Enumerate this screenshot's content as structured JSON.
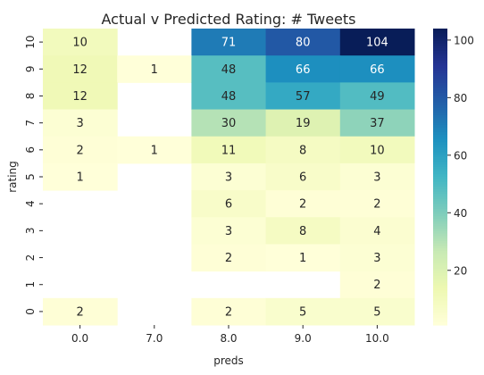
{
  "chart_data": {
    "type": "heatmap",
    "title": "Actual v Predicted Rating: # Tweets",
    "xlabel": "preds",
    "ylabel": "rating",
    "x_categories": [
      "0.0",
      "7.0",
      "8.0",
      "9.0",
      "10.0"
    ],
    "y_categories": [
      "10",
      "9",
      "8",
      "7",
      "6",
      "5",
      "4",
      "3",
      "2",
      "1",
      "0"
    ],
    "values": [
      [
        10,
        null,
        71,
        80,
        104
      ],
      [
        12,
        1,
        48,
        66,
        66
      ],
      [
        12,
        null,
        48,
        57,
        49
      ],
      [
        3,
        null,
        30,
        19,
        37
      ],
      [
        2,
        1,
        11,
        8,
        10
      ],
      [
        1,
        null,
        3,
        6,
        3
      ],
      [
        null,
        null,
        6,
        2,
        2
      ],
      [
        null,
        null,
        3,
        8,
        4
      ],
      [
        null,
        null,
        2,
        1,
        3
      ],
      [
        null,
        null,
        null,
        null,
        2
      ],
      [
        2,
        null,
        2,
        5,
        5
      ]
    ],
    "colormap": "YlGnBu",
    "vmin": 1,
    "vmax": 104,
    "colorbar_ticks": [
      20,
      40,
      60,
      80,
      100
    ],
    "colorbar_tick_labels": [
      "20",
      "40",
      "60",
      "80",
      "100"
    ],
    "annotated": true
  }
}
